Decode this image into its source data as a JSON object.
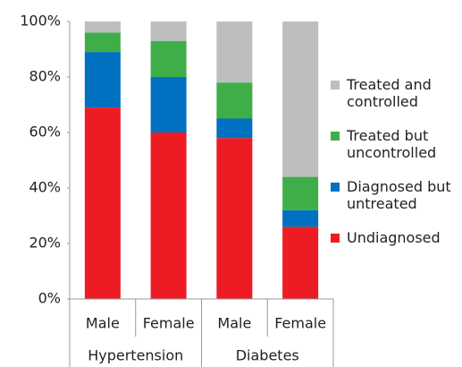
{
  "chart_data": {
    "type": "stacked_bar",
    "categories": [
      "Male",
      "Female",
      "Male",
      "Female"
    ],
    "groups": [
      "Hypertension",
      "Diabetes"
    ],
    "series": [
      {
        "name": "Undiagnosed",
        "color": "#ed1c24",
        "values": [
          69,
          60,
          58,
          26
        ]
      },
      {
        "name": "Diagnosed but untreated",
        "color": "#0070c0",
        "values": [
          20,
          20,
          7,
          6
        ]
      },
      {
        "name": "Treated but uncontrolled",
        "color": "#3fae49",
        "values": [
          7,
          13,
          13,
          12
        ]
      },
      {
        "name": "Treated and controlled",
        "color": "#bcbec0",
        "values": [
          4,
          7,
          22,
          56
        ]
      }
    ],
    "ylim": [
      0,
      100
    ],
    "yticks": [
      {
        "value": 0,
        "label": "0%"
      },
      {
        "value": 20,
        "label": "20%"
      },
      {
        "value": 40,
        "label": "40%"
      },
      {
        "value": 60,
        "label": "60%"
      },
      {
        "value": 80,
        "label": "80%"
      },
      {
        "value": 100,
        "label": "100%"
      }
    ],
    "grid": false
  }
}
